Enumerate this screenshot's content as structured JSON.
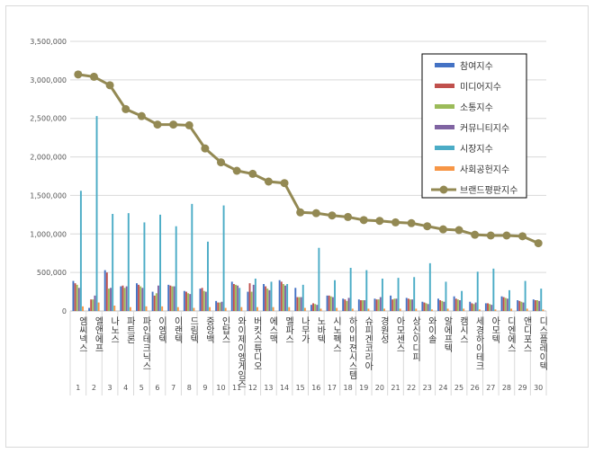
{
  "chart_data": {
    "type": "bar",
    "title": "",
    "xlabel": "",
    "ylabel": "",
    "ylim": [
      0,
      3500000
    ],
    "yticks": [
      "0",
      "500,000",
      "1,000,000",
      "1,500,000",
      "2,000,000",
      "2,500,000",
      "3,000,000",
      "3,500,000"
    ],
    "grid": true,
    "legend_position": "top-right",
    "categories": [
      "엠씨넥스",
      "엘앤에프",
      "나노스",
      "파트론",
      "파인테크닉스",
      "이엠텍",
      "이랜텍",
      "드림텍",
      "중앙백",
      "인탑스",
      "와이제이엠게임즈",
      "버킷스튜디오",
      "에스맥",
      "멜파스",
      "나무가",
      "노바텍",
      "시노펙스",
      "하이비젼시스템",
      "슈피겐코리아",
      "경원성",
      "아모센스",
      "상신이디피",
      "와이솔",
      "알에프텍",
      "캠시스",
      "세경하이테크",
      "아모텍",
      "디엔에스",
      "앤디포스",
      "디스플레이텍"
    ],
    "numbers": [
      "1",
      "2",
      "3",
      "4",
      "5",
      "6",
      "7",
      "8",
      "9",
      "10",
      "11",
      "12",
      "13",
      "14",
      "15",
      "16",
      "17",
      "18",
      "19",
      "20",
      "21",
      "22",
      "23",
      "24",
      "25",
      "26",
      "27",
      "28",
      "29",
      "30"
    ],
    "series": [
      {
        "name": "참여지수",
        "color": "#4472c4",
        "values": [
          390000,
          40000,
          530000,
          320000,
          360000,
          250000,
          340000,
          260000,
          290000,
          130000,
          380000,
          250000,
          350000,
          400000,
          300000,
          80000,
          200000,
          160000,
          150000,
          160000,
          200000,
          170000,
          120000,
          160000,
          190000,
          120000,
          100000,
          190000,
          140000,
          150000
        ]
      },
      {
        "name": "미디어지수",
        "color": "#c0504d",
        "values": [
          360000,
          150000,
          500000,
          330000,
          340000,
          200000,
          330000,
          250000,
          300000,
          110000,
          350000,
          360000,
          320000,
          380000,
          180000,
          100000,
          200000,
          150000,
          140000,
          150000,
          150000,
          160000,
          110000,
          140000,
          160000,
          100000,
          100000,
          180000,
          130000,
          140000
        ]
      },
      {
        "name": "소통지수",
        "color": "#9bbb59",
        "values": [
          340000,
          150000,
          290000,
          300000,
          320000,
          230000,
          320000,
          230000,
          260000,
          110000,
          340000,
          250000,
          290000,
          350000,
          180000,
          90000,
          190000,
          130000,
          140000,
          150000,
          160000,
          150000,
          100000,
          130000,
          150000,
          90000,
          90000,
          170000,
          120000,
          140000
        ]
      },
      {
        "name": "커뮤니티지수",
        "color": "#8064a2",
        "values": [
          300000,
          200000,
          300000,
          320000,
          300000,
          330000,
          320000,
          220000,
          250000,
          120000,
          330000,
          340000,
          270000,
          330000,
          180000,
          80000,
          180000,
          170000,
          140000,
          180000,
          160000,
          150000,
          90000,
          120000,
          140000,
          110000,
          80000,
          160000,
          110000,
          130000
        ]
      },
      {
        "name": "시장지수",
        "color": "#4bacc6",
        "values": [
          1560000,
          2530000,
          1260000,
          1270000,
          1150000,
          1250000,
          1100000,
          1390000,
          900000,
          1370000,
          300000,
          420000,
          380000,
          350000,
          340000,
          820000,
          400000,
          560000,
          530000,
          420000,
          430000,
          440000,
          620000,
          380000,
          260000,
          510000,
          550000,
          270000,
          390000,
          290000
        ]
      },
      {
        "name": "사회공헌지수",
        "color": "#f79646",
        "values": [
          60000,
          110000,
          70000,
          50000,
          60000,
          60000,
          50000,
          40000,
          50000,
          40000,
          50000,
          50000,
          50000,
          50000,
          40000,
          30000,
          40000,
          30000,
          30000,
          30000,
          30000,
          30000,
          20000,
          30000,
          30000,
          20000,
          20000,
          30000,
          30000,
          20000
        ]
      }
    ],
    "line": {
      "name": "브랜드평판지수",
      "color": "#938953",
      "values": [
        3070000,
        3040000,
        2930000,
        2620000,
        2530000,
        2420000,
        2420000,
        2410000,
        2110000,
        1930000,
        1820000,
        1780000,
        1680000,
        1660000,
        1280000,
        1270000,
        1240000,
        1220000,
        1180000,
        1170000,
        1150000,
        1140000,
        1100000,
        1060000,
        1050000,
        990000,
        980000,
        980000,
        970000,
        880000
      ]
    }
  }
}
